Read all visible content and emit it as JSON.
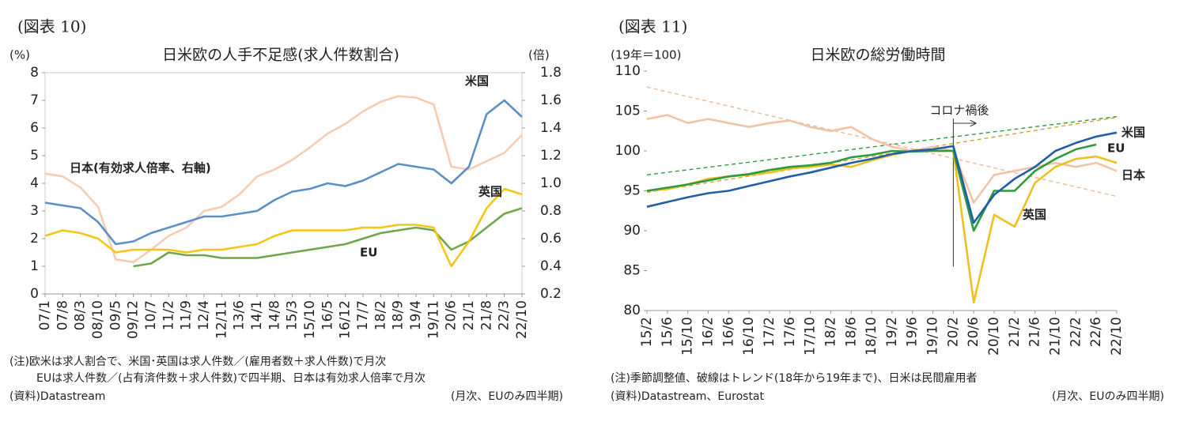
{
  "chart_data": [
    {
      "type": "line",
      "figure_label": "(図表 10)",
      "title": "日米欧の人手不足感(求人件数割合)",
      "y_unit": "(%)",
      "y2_unit": "(倍)",
      "categories": [
        "07/1",
        "07/8",
        "08/3",
        "08/10",
        "09/5",
        "09/12",
        "10/7",
        "11/2",
        "11/9",
        "12/4",
        "12/11",
        "13/6",
        "14/1",
        "14/8",
        "15/3",
        "15/10",
        "16/5",
        "16/12",
        "17/7",
        "18/2",
        "18/9",
        "19/4",
        "19/11",
        "20/6",
        "21/1",
        "21/8",
        "22/3",
        "22/10"
      ],
      "series": [
        {
          "name": "米国",
          "color": "#5b8fc7",
          "values": [
            3.3,
            3.2,
            3.1,
            2.6,
            1.8,
            1.9,
            2.2,
            2.4,
            2.6,
            2.8,
            2.8,
            2.9,
            3.0,
            3.4,
            3.7,
            3.8,
            4.0,
            3.9,
            4.1,
            4.4,
            4.7,
            4.6,
            4.5,
            4.0,
            4.6,
            6.5,
            7.0,
            6.4
          ]
        },
        {
          "name": "英国",
          "color": "#f5c518",
          "values": [
            2.1,
            2.3,
            2.2,
            2.0,
            1.5,
            1.6,
            1.6,
            1.6,
            1.5,
            1.6,
            1.6,
            1.7,
            1.8,
            2.1,
            2.3,
            2.3,
            2.3,
            2.3,
            2.4,
            2.4,
            2.5,
            2.5,
            2.4,
            1.0,
            1.9,
            3.1,
            3.8,
            3.6
          ]
        },
        {
          "name": "EU",
          "color": "#70a64a",
          "values": [
            null,
            null,
            null,
            null,
            null,
            1.0,
            1.1,
            1.5,
            1.4,
            1.4,
            1.3,
            1.3,
            1.3,
            1.4,
            1.5,
            1.6,
            1.7,
            1.8,
            2.0,
            2.2,
            2.3,
            2.4,
            2.3,
            1.6,
            1.9,
            2.4,
            2.9,
            3.1
          ]
        },
        {
          "name": "日本(有効求人倍率、右軸)",
          "color": "#f6cdb4",
          "axis": "y2",
          "values": [
            1.07,
            1.05,
            0.97,
            0.83,
            0.45,
            0.43,
            0.52,
            0.62,
            0.68,
            0.8,
            0.83,
            0.92,
            1.05,
            1.1,
            1.17,
            1.26,
            1.36,
            1.43,
            1.52,
            1.59,
            1.63,
            1.62,
            1.57,
            1.12,
            1.1,
            1.16,
            1.22,
            1.35
          ]
        }
      ],
      "ylim": [
        0,
        8
      ],
      "yticks": [
        0,
        1,
        2,
        3,
        4,
        5,
        6,
        7,
        8
      ],
      "y2lim": [
        0.2,
        1.8
      ],
      "y2ticks": [
        0.2,
        0.4,
        0.6,
        0.8,
        {
          "value": 1,
          "label": "1.0"
        },
        1.2,
        1.4,
        1.6,
        1.8
      ],
      "notes": [
        "(注)欧米は求人割合で、米国･英国は求人件数／(雇用者数＋求人件数)で月次",
        "EUは求人件数／(占有済件数＋求人件数)で四半期、日本は有効求人倍率で月次"
      ],
      "source": "(資料)Datastream",
      "frequency": "(月次、EUのみ四半期)"
    },
    {
      "type": "line",
      "figure_label": "(図表 11)",
      "title": "日米欧の総労働時間",
      "y_unit": "(19年＝100)",
      "categories": [
        "15/2",
        "15/6",
        "15/10",
        "16/2",
        "16/6",
        "16/10",
        "17/2",
        "17/6",
        "17/10",
        "18/2",
        "18/6",
        "18/10",
        "19/2",
        "19/6",
        "19/10",
        "20/2",
        "20/6",
        "20/10",
        "21/2",
        "21/6",
        "21/10",
        "22/2",
        "22/6",
        "22/10"
      ],
      "series": [
        {
          "name": "米国",
          "color": "#1f5fa8",
          "values": [
            93.0,
            93.6,
            94.2,
            94.7,
            95.0,
            95.6,
            96.2,
            96.8,
            97.3,
            97.9,
            98.5,
            99.0,
            99.6,
            100.0,
            100.2,
            100.6,
            91.0,
            94.5,
            96.5,
            98.0,
            100.0,
            101.0,
            101.8,
            102.3
          ]
        },
        {
          "name": "EU",
          "color": "#2e9a3e",
          "values": [
            95.0,
            95.4,
            95.8,
            96.3,
            96.8,
            97.1,
            97.6,
            98.0,
            98.2,
            98.5,
            99.2,
            99.5,
            100.0,
            99.9,
            100.0,
            100.0,
            90.0,
            95.0,
            95.0,
            97.5,
            99.0,
            100.2,
            100.8,
            null
          ]
        },
        {
          "name": "日本",
          "color": "#f0c4a6",
          "values": [
            104.0,
            104.5,
            103.5,
            104.0,
            103.5,
            103.0,
            103.5,
            103.8,
            103.0,
            102.5,
            103.0,
            101.5,
            100.5,
            100.0,
            100.5,
            100.0,
            93.5,
            97.0,
            97.5,
            98.0,
            98.5,
            98.0,
            98.5,
            97.5
          ]
        },
        {
          "name": "英国",
          "color": "#f0c020",
          "values": [
            95.0,
            95.2,
            95.8,
            96.5,
            96.8,
            97.0,
            97.3,
            97.8,
            98.0,
            98.3,
            98.0,
            98.8,
            99.5,
            100.0,
            100.0,
            100.0,
            81.0,
            92.0,
            90.5,
            96.0,
            98.0,
            99.0,
            99.3,
            98.5
          ]
        }
      ],
      "trends": [
        {
          "color": "#f0b890",
          "values": [
            108,
            94.3
          ]
        },
        {
          "color": "#2e9a3e",
          "values": [
            97,
            104.3
          ]
        },
        {
          "color": "#c8a830",
          "values": [
            94.8,
            104.2
          ]
        }
      ],
      "annotation": "コロナ禍後",
      "ylim": [
        80,
        110
      ],
      "yticks": [
        80,
        85,
        90,
        95,
        100,
        105,
        110
      ],
      "notes": [
        "(注)季節調整値、破線はトレンド(18年から19年まで)、日米は民間雇用者"
      ],
      "source": "(資料)Datastream、Eurostat",
      "frequency": "(月次、EUのみ四半期)"
    }
  ]
}
